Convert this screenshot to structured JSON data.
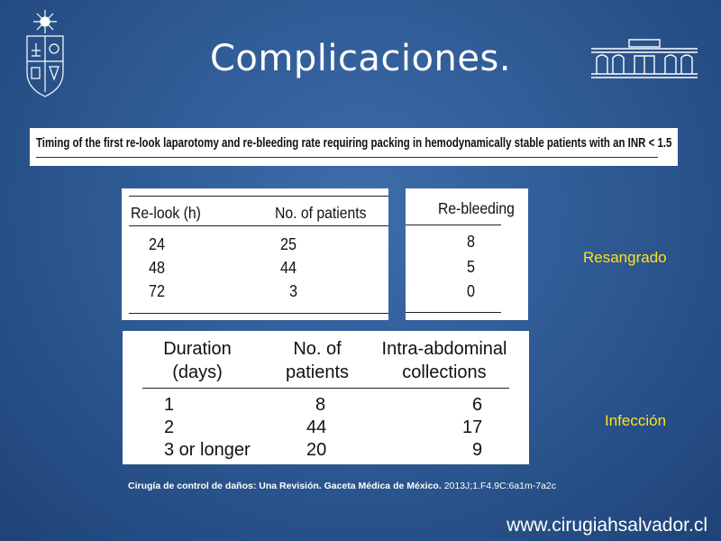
{
  "slide": {
    "title": "Complicaciones.",
    "website": "www.cirugiahsalvador.cl",
    "colors": {
      "background": "#2f5b95",
      "title": "#ffffff",
      "accent_labels": "#ffe21a"
    },
    "logo_left": "university-crest-icon",
    "logo_right": "hospital-building-icon"
  },
  "caption": "Timing of the first re-look laparotomy and re-bleeding rate requiring packing in hemodynamically stable patients with an INR < 1.5",
  "relook_table": {
    "headers": [
      "Re-look (h)",
      "No. of patients"
    ],
    "rows": [
      [
        "24",
        "25"
      ],
      [
        "48",
        "44"
      ],
      [
        "72",
        "3"
      ]
    ]
  },
  "rebleeding_table": {
    "header": "Re-bleeding",
    "values": [
      "8",
      "5",
      "0"
    ]
  },
  "duration_table": {
    "headers": [
      "Duration",
      "(days)",
      "No. of",
      "patients",
      "Intra-abdominal",
      "collections"
    ],
    "rows": [
      [
        "1",
        "8",
        "6"
      ],
      [
        "2",
        "44",
        "17"
      ],
      [
        "3 or longer",
        "20",
        "9"
      ]
    ]
  },
  "labels": {
    "rebleeding": "Resangrado",
    "infection": "Infección"
  },
  "source": {
    "title": "Cirugía de control de daños: Una Revisión. Gaceta Médica de México.",
    "ref": "2013J;1.F4.9C:6a1m-7a2c"
  }
}
